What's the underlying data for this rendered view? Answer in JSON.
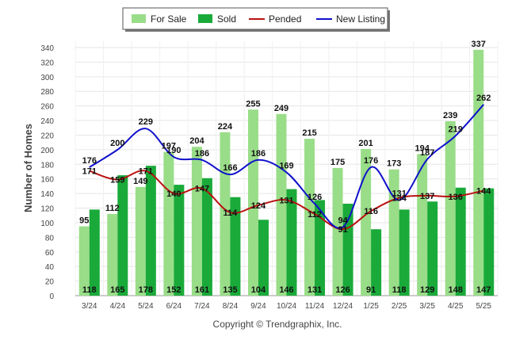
{
  "chart_data": {
    "type": "bar",
    "categories": [
      "3/24",
      "4/24",
      "5/24",
      "6/24",
      "7/24",
      "8/24",
      "9/24",
      "10/24",
      "11/24",
      "12/24",
      "1/25",
      "2/25",
      "3/25",
      "4/25",
      "5/25"
    ],
    "series": [
      {
        "name": "For Sale",
        "kind": "bar",
        "color": "#99dd88",
        "values": [
          95,
          112,
          149,
          197,
          204,
          224,
          255,
          249,
          215,
          175,
          201,
          173,
          194,
          239,
          337
        ]
      },
      {
        "name": "Sold",
        "kind": "bar",
        "color": "#1aaa3a",
        "values": [
          118,
          165,
          178,
          152,
          161,
          135,
          104,
          146,
          131,
          126,
          91,
          118,
          129,
          148,
          147
        ]
      },
      {
        "name": "Pended",
        "kind": "line",
        "color": "#bb1111",
        "values": [
          171,
          159,
          171,
          140,
          147,
          114,
          124,
          131,
          112,
          91,
          116,
          134,
          137,
          136,
          144
        ]
      },
      {
        "name": "New Listing",
        "kind": "line",
        "color": "#1111cc",
        "values": [
          176,
          200,
          229,
          190,
          186,
          166,
          186,
          169,
          126,
          94,
          176,
          131,
          187,
          219,
          262
        ]
      }
    ],
    "title": "",
    "xlabel": "",
    "ylabel": "Number of Homes",
    "ylim": [
      0,
      340
    ],
    "yticks": [
      0,
      20,
      40,
      60,
      80,
      100,
      120,
      140,
      160,
      180,
      200,
      220,
      240,
      260,
      280,
      300,
      320,
      340
    ],
    "grid": true,
    "legend_position": "top-center"
  },
  "legend": {
    "items": [
      {
        "label": "For Sale",
        "kind": "bar",
        "color": "#99dd88"
      },
      {
        "label": "Sold",
        "kind": "bar",
        "color": "#1aaa3a"
      },
      {
        "label": "Pended",
        "kind": "line",
        "color": "#bb1111"
      },
      {
        "label": "New Listing",
        "kind": "line",
        "color": "#1111cc"
      }
    ]
  },
  "credit": "Copyright © Trendgraphix, Inc."
}
